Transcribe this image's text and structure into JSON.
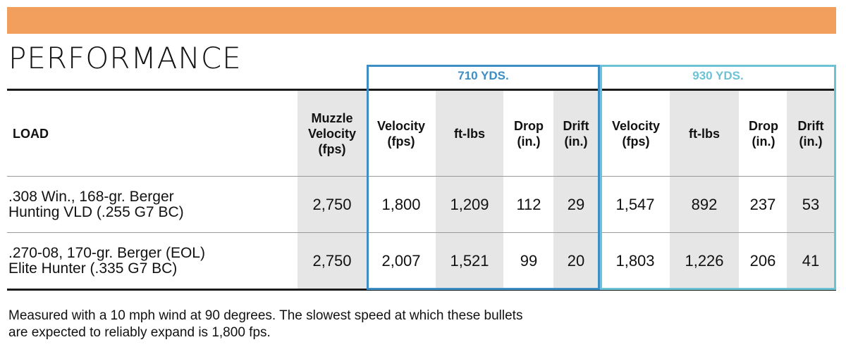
{
  "title": "PERFORMANCE",
  "colors": {
    "banner": "#f29e5c",
    "group_710": "#3d8ec4",
    "group_930": "#6cc3d5",
    "shade": "#e6e6e6"
  },
  "groups": {
    "g710": "710 YDS.",
    "g930": "930 YDS."
  },
  "headers": {
    "load": "LOAD",
    "muzzle": "Muzzle Velocity (fps)",
    "v710": "Velocity (fps)",
    "e710": "ft-lbs",
    "d710": "Drop (in.)",
    "w710": "Drift (in.)",
    "v930": "Velocity (fps)",
    "e930": "ft-lbs",
    "d930": "Drop (in.)",
    "w930": "Drift (in.)"
  },
  "rows": [
    {
      "load_line1": ".308 Win., 168-gr. Berger",
      "load_line2": "Hunting VLD (.255 G7 BC)",
      "muzzle": "2,750",
      "v710": "1,800",
      "e710": "1,209",
      "d710": "112",
      "w710": "29",
      "v930": "1,547",
      "e930": "892",
      "d930": "237",
      "w930": "53"
    },
    {
      "load_line1": ".270-08, 170-gr. Berger (EOL)",
      "load_line2": "Elite Hunter (.335 G7 BC)",
      "muzzle": "2,750",
      "v710": "2,007",
      "e710": "1,521",
      "d710": "99",
      "w710": "20",
      "v930": "1,803",
      "e930": "1,226",
      "d930": "206",
      "w930": "41"
    }
  ],
  "note_line1": "Measured with a 10 mph wind at 90 degrees. The slowest speed at which these bullets",
  "note_line2": "are expected to reliably expand is 1,800 fps."
}
